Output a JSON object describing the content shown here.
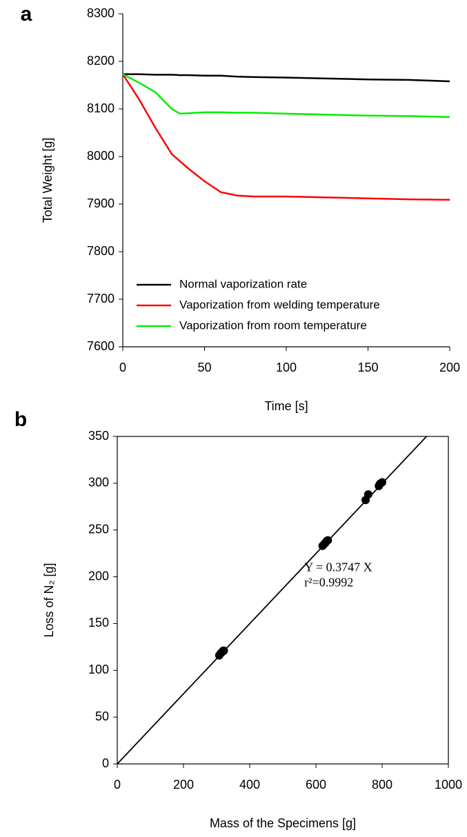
{
  "chart_data": [
    {
      "type": "line",
      "panel_label": "a",
      "xlabel": "Time [s]",
      "ylabel": "Total Weight [g]",
      "x": [
        0,
        10,
        20,
        30,
        35,
        40,
        50,
        60,
        70,
        80,
        100,
        125,
        150,
        175,
        200
      ],
      "series": [
        {
          "name": "Normal vaporization rate",
          "color": "#000000",
          "values": [
            8173,
            8173,
            8172,
            8172,
            8171,
            8171,
            8170,
            8170,
            8168,
            8167,
            8166,
            8164,
            8162,
            8161,
            8158
          ]
        },
        {
          "name": "Vaporization from welding temperature",
          "color": "#ff0000",
          "values": [
            8173,
            8120,
            8060,
            8005,
            7990,
            7975,
            7948,
            7925,
            7918,
            7916,
            7916,
            7914,
            7912,
            7910,
            7909
          ]
        },
        {
          "name": "Vaporization from room temperature",
          "color": "#00ee00",
          "values": [
            8173,
            8155,
            8135,
            8100,
            8090,
            8091,
            8093,
            8093,
            8092,
            8092,
            8090,
            8088,
            8086,
            8085,
            8083
          ]
        }
      ],
      "xlim": [
        0,
        200
      ],
      "xticks": [
        0,
        50,
        100,
        150,
        200
      ],
      "ylim": [
        7600,
        8300
      ],
      "yticks": [
        7600,
        7700,
        7800,
        7900,
        8000,
        8100,
        8200,
        8300
      ],
      "legend": "lower left"
    },
    {
      "type": "scatter",
      "panel_label": "b",
      "xlabel": "Mass of the Specimens [g]",
      "ylabel": "Loss of N₂ [g]",
      "x": [
        308,
        312,
        315,
        318,
        320,
        322,
        620,
        625,
        628,
        632,
        636,
        750,
        758,
        790,
        793,
        796,
        800
      ],
      "values": [
        116,
        118,
        119,
        120,
        121,
        121,
        233,
        235,
        236,
        238,
        239,
        282,
        288,
        297,
        299,
        300,
        301
      ],
      "color": "#000000",
      "fit_slope": 0.3747,
      "annotations": [
        "Y = 0.3747 X",
        "r²=0.9992"
      ],
      "xlim": [
        0,
        1000
      ],
      "xticks": [
        0,
        200,
        400,
        600,
        800,
        1000
      ],
      "ylim": [
        0,
        350
      ],
      "yticks": [
        0,
        50,
        100,
        150,
        200,
        250,
        300,
        350
      ]
    }
  ]
}
